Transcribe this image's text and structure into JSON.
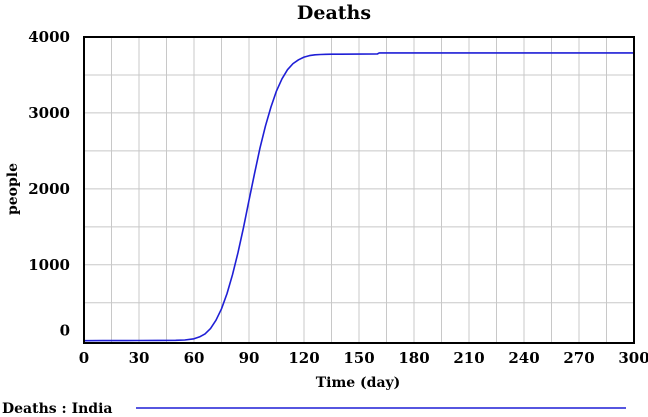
{
  "chart_data": {
    "type": "line",
    "title": "Deaths",
    "xlabel": "Time (day)",
    "ylabel": "people",
    "xlim": [
      0,
      300
    ],
    "ylim": [
      -30,
      4000
    ],
    "x_ticks": [
      0,
      30,
      60,
      90,
      120,
      150,
      180,
      210,
      240,
      270,
      300
    ],
    "x_tick_labels": [
      "0",
      "30",
      "60",
      "90",
      "120",
      "150",
      "180",
      "210",
      "240",
      "270",
      "300"
    ],
    "y_ticks": [
      0,
      1000,
      2000,
      3000,
      4000
    ],
    "y_tick_labels": [
      "0",
      "1000",
      "2000",
      "3000",
      "4000"
    ],
    "grid": true,
    "legend_position": "bottom",
    "series": [
      {
        "name": "Deaths : India",
        "color": "#1f1fd6",
        "x": [
          0,
          10,
          20,
          30,
          40,
          50,
          55,
          60,
          63,
          66,
          69,
          72,
          75,
          78,
          81,
          84,
          87,
          90,
          93,
          96,
          99,
          102,
          105,
          108,
          111,
          114,
          117,
          120,
          123,
          126,
          129,
          132,
          135,
          140,
          150,
          160,
          161,
          170,
          200,
          230,
          260,
          300
        ],
        "y": [
          0,
          1,
          2,
          3,
          4,
          6,
          10,
          25,
          50,
          90,
          160,
          270,
          420,
          620,
          870,
          1160,
          1490,
          1850,
          2200,
          2540,
          2830,
          3080,
          3290,
          3450,
          3570,
          3650,
          3700,
          3735,
          3755,
          3765,
          3770,
          3772,
          3773,
          3774,
          3775,
          3776,
          3790,
          3790,
          3790,
          3790,
          3790,
          3790
        ]
      }
    ]
  }
}
